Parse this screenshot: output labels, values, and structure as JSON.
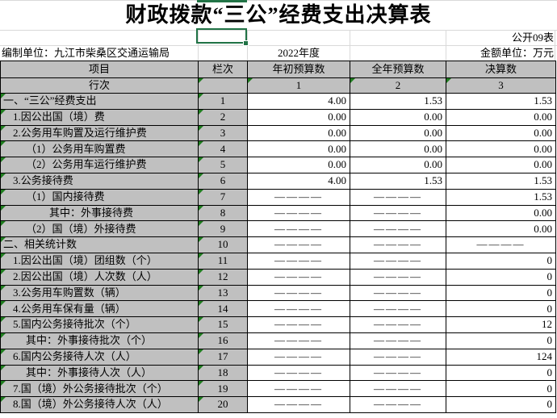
{
  "title": "财政拨款“三公”经费支出决算表",
  "header_info": {
    "sheet_no": "公开09表",
    "prepared_by": "编制单位：九江市柴桑区交通运输局",
    "year": "2022年度",
    "amount_unit": "金额单位：万元"
  },
  "table": {
    "col_headers": {
      "item": "项目",
      "line_no": "栏次",
      "initial_budget": "年初预算数",
      "annual_budget": "全年预算数",
      "final_accounts": "决算数"
    },
    "line_row": {
      "label": "行次",
      "blank": "",
      "col1": "1",
      "col2": "2",
      "col3": "3"
    },
    "rows": [
      {
        "item": "一、“三公”经费支出",
        "indent": 0,
        "line": "1",
        "c1": "4.00",
        "c2": "1.53",
        "c3": "1.53"
      },
      {
        "item": "1.因公出国（境）费",
        "indent": 1,
        "line": "2",
        "c1": "0.00",
        "c2": "0.00",
        "c3": "0.00"
      },
      {
        "item": "2.公务用车购置及运行维护费",
        "indent": 1,
        "line": "3",
        "c1": "0.00",
        "c2": "0.00",
        "c3": "0.00"
      },
      {
        "item": "（1）公务用车购置费",
        "indent": 2,
        "line": "4",
        "c1": "0.00",
        "c2": "0.00",
        "c3": "0.00"
      },
      {
        "item": "（2）公务用车运行维护费",
        "indent": 2,
        "line": "5",
        "c1": "0.00",
        "c2": "0.00",
        "c3": "0.00"
      },
      {
        "item": "3.公务接待费",
        "indent": 1,
        "line": "6",
        "c1": "4.00",
        "c2": "1.53",
        "c3": "1.53"
      },
      {
        "item": "（1）国内接待费",
        "indent": 2,
        "line": "7",
        "c1": "————",
        "c2": "————",
        "c3": "1.53"
      },
      {
        "item": "其中：外事接待费",
        "indent": 3,
        "line": "8",
        "c1": "————",
        "c2": "————",
        "c3": "0.00"
      },
      {
        "item": "（2）国（境）外接待费",
        "indent": 2,
        "line": "9",
        "c1": "————",
        "c2": "————",
        "c3": "0.00"
      },
      {
        "item": "二、相关统计数",
        "indent": 0,
        "line": "10",
        "c1": "————",
        "c2": "————",
        "c3": "————"
      },
      {
        "item": "1.因公出国（境）团组数（个）",
        "indent": 1,
        "line": "11",
        "c1": "————",
        "c2": "————",
        "c3": "0"
      },
      {
        "item": "2.因公出国（境）人次数（人）",
        "indent": 1,
        "line": "12",
        "c1": "————",
        "c2": "————",
        "c3": "0"
      },
      {
        "item": "3.公务用车购置数（辆）",
        "indent": 1,
        "line": "13",
        "c1": "————",
        "c2": "————",
        "c3": "0"
      },
      {
        "item": "4.公务用车保有量（辆）",
        "indent": 1,
        "line": "14",
        "c1": "————",
        "c2": "————",
        "c3": "0"
      },
      {
        "item": "5.国内公务接待批次（个）",
        "indent": 1,
        "line": "15",
        "c1": "————",
        "c2": "————",
        "c3": "12"
      },
      {
        "item": "其中：外事接待批次（个）",
        "indent": 2,
        "line": "16",
        "c1": "————",
        "c2": "————",
        "c3": "0"
      },
      {
        "item": "6.国内公务接待人次（人）",
        "indent": 1,
        "line": "17",
        "c1": "————",
        "c2": "————",
        "c3": "124"
      },
      {
        "item": "其中：外事接待人次（人）",
        "indent": 2,
        "line": "18",
        "c1": "————",
        "c2": "————",
        "c3": "0"
      },
      {
        "item": "7.国（境）外公务接待批次（个）",
        "indent": 1,
        "line": "19",
        "c1": "————",
        "c2": "————",
        "c3": "0"
      },
      {
        "item": "8.国（境）外公务接待人次（人）",
        "indent": 1,
        "line": "20",
        "c1": "————",
        "c2": "————",
        "c3": "0"
      }
    ]
  },
  "colors": {
    "cell_gray": "#c0c0c0",
    "selection_green": "#217346",
    "flag_green": "#1f7d1f",
    "grid_faint": "#d9d9d9",
    "border_black": "#000000"
  }
}
